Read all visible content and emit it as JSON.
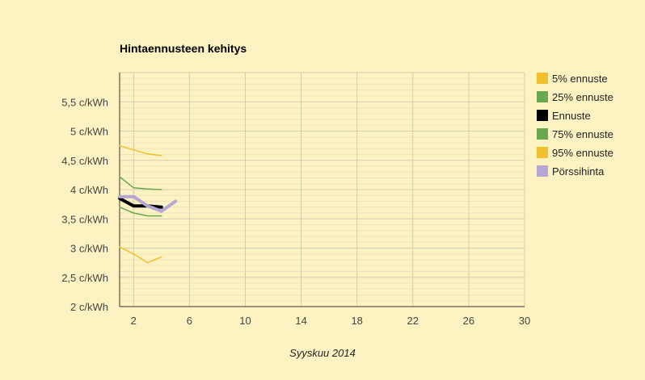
{
  "chart_data": {
    "type": "line",
    "title": "Hintaennusteen kehitys",
    "xlabel": "Syyskuu 2014",
    "ylabel": "",
    "xlim": [
      1,
      30
    ],
    "ylim": [
      2,
      6
    ],
    "x_ticks": [
      2,
      6,
      10,
      14,
      18,
      22,
      26,
      30
    ],
    "y_ticks": [
      {
        "value": 2,
        "label": "2 c/kWh"
      },
      {
        "value": 2.5,
        "label": "2,5 c/kWh"
      },
      {
        "value": 3,
        "label": "3 c/kWh"
      },
      {
        "value": 3.5,
        "label": "3,5 c/kWh"
      },
      {
        "value": 4,
        "label": "4 c/kWh"
      },
      {
        "value": 4.5,
        "label": "4,5 c/kWh"
      },
      {
        "value": 5,
        "label": "5 c/kWh"
      },
      {
        "value": 5.5,
        "label": "5,5 c/kWh"
      }
    ],
    "grid": true,
    "legend_position": "right",
    "series": [
      {
        "name": "5% ennuste",
        "color": "#f0c030",
        "width": 1.5,
        "points": [
          [
            1,
            3.02
          ],
          [
            2,
            2.9
          ],
          [
            3,
            2.75
          ],
          [
            4,
            2.85
          ]
        ]
      },
      {
        "name": "25% ennuste",
        "color": "#6aa84f",
        "width": 1.5,
        "points": [
          [
            1,
            3.7
          ],
          [
            2,
            3.6
          ],
          [
            3,
            3.55
          ],
          [
            4,
            3.55
          ]
        ]
      },
      {
        "name": "Ennuste",
        "color": "#000000",
        "width": 4,
        "points": [
          [
            1,
            3.85
          ],
          [
            2,
            3.72
          ],
          [
            3,
            3.72
          ],
          [
            4,
            3.7
          ]
        ]
      },
      {
        "name": "75% ennuste",
        "color": "#6aa84f",
        "width": 1.5,
        "points": [
          [
            1,
            4.22
          ],
          [
            2,
            4.03
          ],
          [
            3,
            4.01
          ],
          [
            4,
            4.0
          ]
        ]
      },
      {
        "name": "95% ennuste",
        "color": "#f0c030",
        "width": 1.5,
        "points": [
          [
            1,
            4.75
          ],
          [
            2,
            4.68
          ],
          [
            3,
            4.61
          ],
          [
            4,
            4.58
          ]
        ]
      },
      {
        "name": "Pörssihinta",
        "color": "#b4a7d6",
        "width": 4,
        "points": [
          [
            1,
            3.88
          ],
          [
            2,
            3.88
          ],
          [
            3,
            3.72
          ],
          [
            4,
            3.63
          ],
          [
            5,
            3.8
          ]
        ]
      }
    ]
  }
}
